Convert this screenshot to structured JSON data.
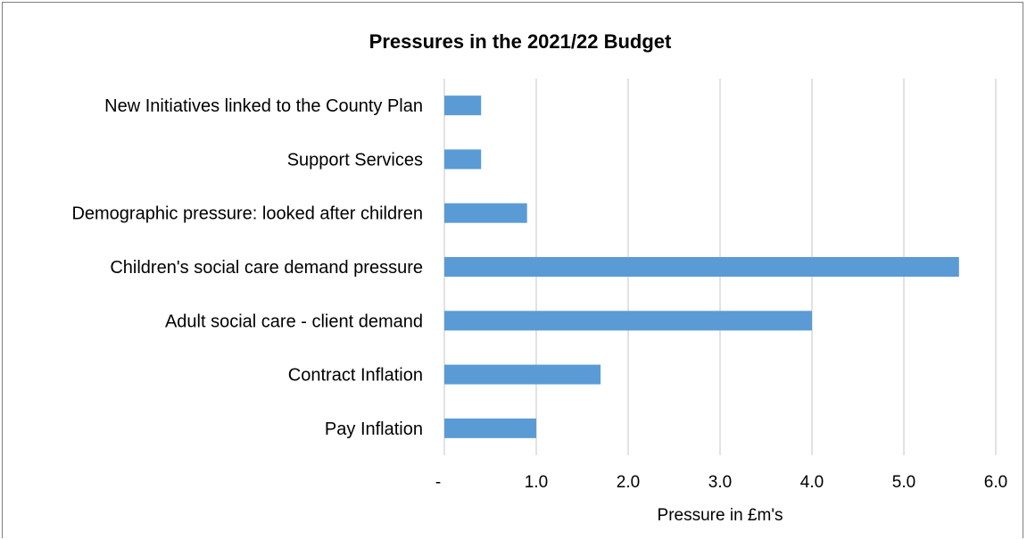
{
  "chart_data": {
    "type": "bar",
    "orientation": "horizontal",
    "title": "Pressures in the 2021/22 Budget",
    "xlabel": "Pressure in £m's",
    "ylabel": "",
    "categories": [
      "New Initiatives linked to the County Plan",
      "Support Services",
      "Demographic pressure: looked after children",
      "Children's social care  demand pressure",
      "Adult social care - client demand",
      "Contract Inflation",
      "Pay Inflation"
    ],
    "values": [
      0.4,
      0.4,
      0.9,
      5.6,
      4.0,
      1.7,
      1.0
    ],
    "xlim": [
      0,
      6
    ],
    "x_ticks": [
      "-",
      "1.0",
      "2.0",
      "3.0",
      "4.0",
      "5.0",
      "6.0"
    ],
    "x_tick_values": [
      0,
      1,
      2,
      3,
      4,
      5,
      6
    ],
    "grid": "vertical",
    "bar_color": "#5b9bd5",
    "grid_color": "#d9d9d9",
    "legend": "none"
  }
}
